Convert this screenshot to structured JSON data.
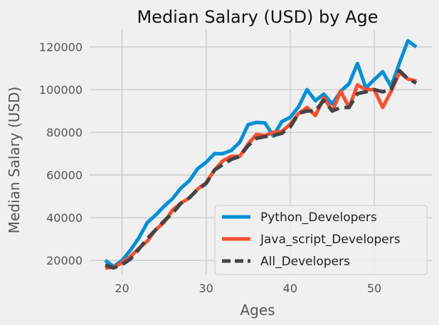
{
  "chart_data": {
    "type": "line",
    "title": "Median Salary (USD) by Age",
    "xlabel": "Ages",
    "ylabel": "Median Salary (USD)",
    "xlim": [
      16.15,
      56.85
    ],
    "ylim": [
      13400,
      128000
    ],
    "x_ticks": [
      20,
      30,
      40,
      50
    ],
    "y_ticks": [
      20000,
      40000,
      60000,
      80000,
      100000,
      120000
    ],
    "x_tick_labels": [
      "20",
      "30",
      "40",
      "50"
    ],
    "y_tick_labels": [
      "20000",
      "40000",
      "60000",
      "80000",
      "100000",
      "120000"
    ],
    "grid": true,
    "legend_position": "lower-right",
    "x": [
      18,
      19,
      20,
      21,
      22,
      23,
      24,
      25,
      26,
      27,
      28,
      29,
      30,
      31,
      32,
      33,
      34,
      35,
      36,
      37,
      38,
      39,
      40,
      41,
      42,
      43,
      44,
      45,
      46,
      47,
      48,
      49,
      50,
      51,
      52,
      53,
      54,
      55
    ],
    "series": [
      {
        "name": "Python_Developers",
        "color": "#008fd5",
        "dash": "solid",
        "values": [
          20046,
          17100,
          20000,
          24744,
          30500,
          37732,
          41247,
          45372,
          48876,
          53850,
          57287,
          63016,
          65998,
          70003,
          70000,
          71496,
          75370,
          83640,
          84666,
          84392,
          78254,
          85000,
          87038,
          91991,
          100000,
          94796,
          97962,
          93302,
          99240,
          102736,
          112285,
          100771,
          104708,
          108423,
          101407,
          112542,
          122870,
          120000
        ]
      },
      {
        "name": "Java_script_Developers",
        "color": "#fc4f30",
        "dash": "solid",
        "values": [
          16446,
          16791,
          18942,
          21780,
          25704,
          29000,
          34372,
          37810,
          43515,
          46823,
          49293,
          53437,
          56373,
          62375,
          66674,
          68745,
          68746,
          74583,
          79000,
          78508,
          79996,
          80403,
          83820,
          88833,
          91660,
          87892,
          96243,
          90000,
          99313,
          91660,
          102264,
          100000,
          100000,
          91660,
          99240,
          108000,
          105000,
          104000
        ]
      },
      {
        "name": "All_Developers",
        "color": "#444444",
        "dash": "dashed",
        "values": [
          17784,
          16500,
          18012,
          20628,
          25206,
          30252,
          34368,
          38496,
          42000,
          46752,
          49320,
          53200,
          56000,
          62316,
          64928,
          67317,
          68748,
          73752,
          77232,
          78000,
          78508,
          79536,
          82488,
          88935,
          90000,
          90056,
          95000,
          90000,
          91633,
          91660,
          98150,
          98964,
          100000,
          98988,
          100000,
          108923,
          105000,
          103117
        ]
      }
    ]
  }
}
